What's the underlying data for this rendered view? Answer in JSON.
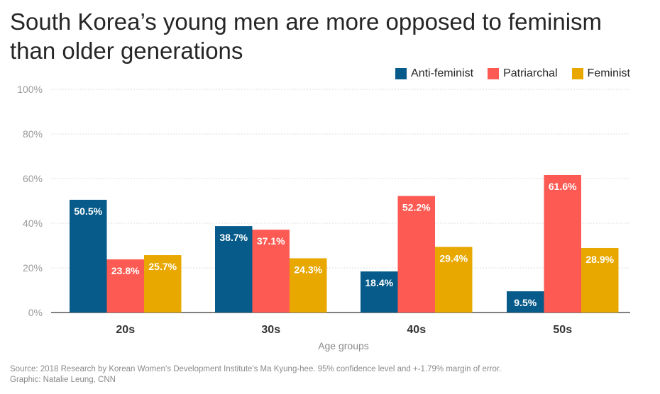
{
  "title": "South Korea’s young men are more opposed to feminism than older generations",
  "footer": {
    "source": "Source: 2018 Research by Korean Women's Development Institute's Ma Kyung-hee. 95% confidence level and +-1.79% margin of error.",
    "credit": "Graphic: Natalie Leung, CNN"
  },
  "chart_data": {
    "type": "bar",
    "title": "South Korea’s young men are more opposed to feminism than older generations",
    "xlabel": "Age groups",
    "ylabel": "",
    "categories": [
      "20s",
      "30s",
      "40s",
      "50s"
    ],
    "series": [
      {
        "name": "Anti-feminist",
        "color": "#065b8a",
        "values": [
          50.5,
          38.7,
          18.4,
          9.5
        ],
        "labels": [
          "50.5%",
          "38.7%",
          "18.4%",
          "9.5%"
        ]
      },
      {
        "name": "Patriarchal",
        "color": "#fc5a52",
        "values": [
          23.8,
          37.1,
          52.2,
          61.6
        ],
        "labels": [
          "23.8%",
          "37.1%",
          "52.2%",
          "61.6%"
        ]
      },
      {
        "name": "Feminist",
        "color": "#e8a800",
        "values": [
          25.7,
          24.3,
          29.4,
          28.9
        ],
        "labels": [
          "25.7%",
          "24.3%",
          "29.4%",
          "28.9%"
        ]
      }
    ],
    "ylim": [
      0,
      100
    ],
    "yticks": [
      0,
      20,
      40,
      60,
      80,
      100
    ],
    "ytick_labels": [
      "0%",
      "20%",
      "40%",
      "60%",
      "80%",
      "100%"
    ],
    "grid": true,
    "legend_position": "top-right"
  }
}
